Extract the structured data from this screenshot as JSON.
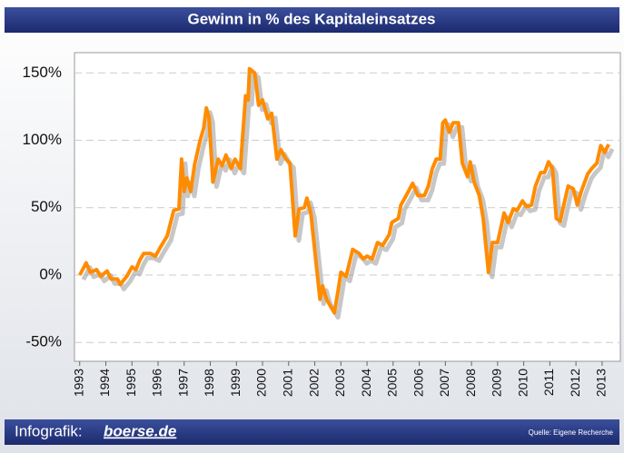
{
  "chart_data": {
    "type": "line",
    "title": "Gewinn in % des Kapitaleinsatzes",
    "credit_label": "Infografik:",
    "credit_brand": "boerse.de",
    "source": "Quelle: Eigene Recherche",
    "xlim": [
      1992.8,
      2013.7
    ],
    "xticks": [
      1993,
      1994,
      1995,
      1996,
      1997,
      1998,
      1999,
      2000,
      2001,
      2002,
      2003,
      2004,
      2005,
      2006,
      2007,
      2008,
      2009,
      2010,
      2011,
      2012,
      2013
    ],
    "ylim": [
      -64,
      165
    ],
    "yticks": [
      {
        "value": -50,
        "label": "-50%"
      },
      {
        "value": 0,
        "label": "0%"
      },
      {
        "value": 50,
        "label": "50%"
      },
      {
        "value": 100,
        "label": "100%"
      },
      {
        "value": 150,
        "label": "150%"
      }
    ],
    "grid": true,
    "series": [
      {
        "color": "#ff8c00",
        "x": [
          1993.0,
          1993.25,
          1993.4,
          1993.65,
          1993.8,
          1994.05,
          1994.2,
          1994.45,
          1994.55,
          1994.8,
          1995.0,
          1995.15,
          1995.3,
          1995.45,
          1995.7,
          1995.9,
          1996.1,
          1996.35,
          1996.6,
          1996.8,
          1996.9,
          1997.0,
          1997.1,
          1997.25,
          1997.4,
          1997.6,
          1997.75,
          1997.85,
          1997.95,
          1998.1,
          1998.3,
          1998.45,
          1998.6,
          1998.8,
          1998.95,
          1999.15,
          1999.35,
          1999.45,
          1999.5,
          1999.7,
          1999.85,
          2000.0,
          2000.2,
          2000.35,
          2000.55,
          2000.7,
          2000.9,
          2001.05,
          2001.25,
          2001.4,
          2001.6,
          2001.7,
          2001.85,
          2002.05,
          2002.2,
          2002.3,
          2002.45,
          2002.75,
          2002.9,
          2003.0,
          2003.2,
          2003.45,
          2003.7,
          2003.85,
          2004.0,
          2004.2,
          2004.4,
          2004.6,
          2004.85,
          2004.95,
          2005.2,
          2005.3,
          2005.5,
          2005.75,
          2005.95,
          2006.2,
          2006.35,
          2006.5,
          2006.65,
          2006.8,
          2006.9,
          2007.0,
          2007.15,
          2007.3,
          2007.5,
          2007.65,
          2007.85,
          2007.95,
          2008.1,
          2008.3,
          2008.45,
          2008.65,
          2008.8,
          2009.0,
          2009.25,
          2009.4,
          2009.6,
          2009.75,
          2009.95,
          2010.1,
          2010.3,
          2010.45,
          2010.65,
          2010.8,
          2010.95,
          2011.1,
          2011.25,
          2011.4,
          2011.5,
          2011.7,
          2011.9,
          2012.05,
          2012.2,
          2012.45,
          2012.6,
          2012.8,
          2012.95,
          2013.1,
          2013.25
        ],
        "values": [
          0,
          9,
          2,
          4,
          -1,
          3,
          -3,
          -3,
          -7,
          -1,
          6,
          4,
          11,
          16,
          16,
          14,
          21,
          29,
          48,
          49,
          86,
          62,
          72,
          62,
          82,
          99,
          109,
          124,
          117,
          69,
          86,
          81,
          89,
          79,
          86,
          79,
          133,
          130,
          153,
          150,
          126,
          130,
          116,
          120,
          86,
          93,
          86,
          83,
          29,
          49,
          50,
          57,
          46,
          9,
          -18,
          -8,
          -18,
          -28,
          -11,
          2,
          -1,
          19,
          16,
          12,
          14,
          12,
          24,
          22,
          30,
          39,
          42,
          52,
          59,
          68,
          59,
          59,
          66,
          79,
          86,
          86,
          113,
          115,
          106,
          113,
          113,
          83,
          73,
          84,
          69,
          59,
          42,
          2,
          24,
          24,
          46,
          39,
          49,
          48,
          55,
          51,
          52,
          66,
          76,
          76,
          84,
          79,
          42,
          40,
          49,
          66,
          64,
          52,
          62,
          75,
          79,
          83,
          96,
          91,
          97
        ]
      }
    ]
  }
}
